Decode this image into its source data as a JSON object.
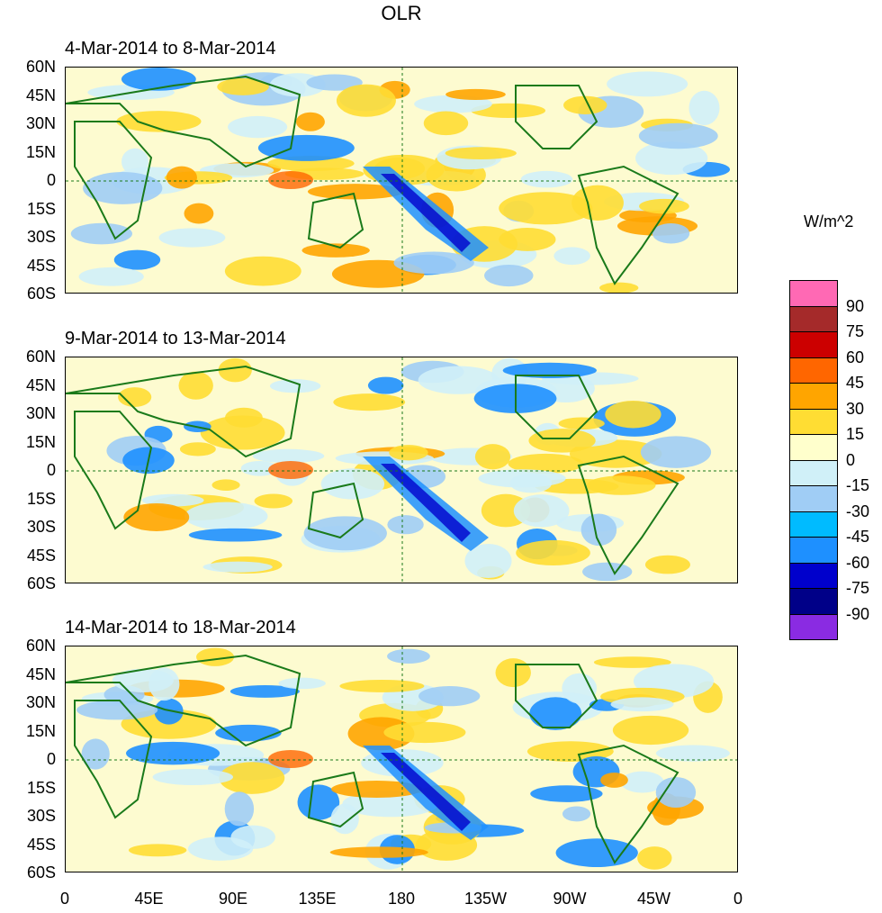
{
  "title": "OLR",
  "units": "W/m^2",
  "panels": [
    {
      "title": "4-Mar-2014 to 8-Mar-2014"
    },
    {
      "title": "9-Mar-2014 to 13-Mar-2014"
    },
    {
      "title": "14-Mar-2014 to 18-Mar-2014"
    }
  ],
  "lat_labels": [
    "60N",
    "45N",
    "30N",
    "15N",
    "0",
    "15S",
    "30S",
    "45S",
    "60S"
  ],
  "lon_labels": [
    "0",
    "45E",
    "90E",
    "135E",
    "180",
    "135W",
    "90W",
    "45W",
    "0"
  ],
  "colorbar": {
    "labels": [
      "90",
      "75",
      "60",
      "45",
      "30",
      "15",
      "0",
      "-15",
      "-30",
      "-45",
      "-60",
      "-75",
      "-90"
    ],
    "colors": [
      "#ff69b4",
      "#a52a2a",
      "#cc0000",
      "#ff6600",
      "#ffa500",
      "#ffdd33",
      "#ffffcc",
      "#d0f0f8",
      "#a0cdf5",
      "#00bbff",
      "#1e90ff",
      "#0000cc",
      "#000088",
      "#8a2be2"
    ]
  }
}
